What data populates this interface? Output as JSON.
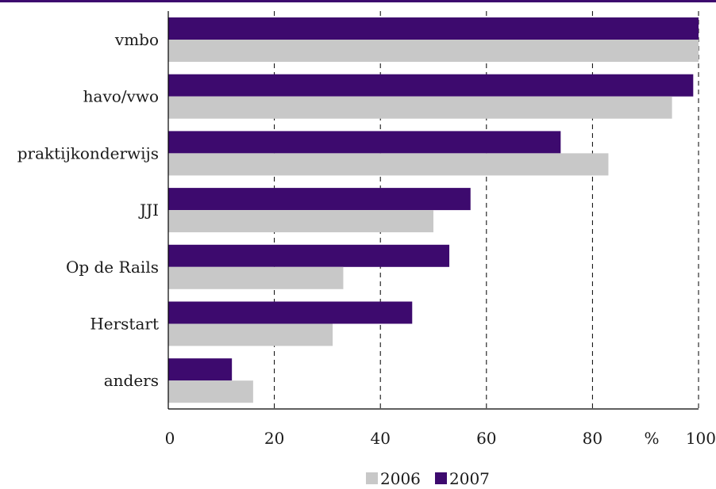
{
  "chart_data": {
    "type": "bar",
    "orientation": "horizontal",
    "categories": [
      "vmbo",
      "havo/vwo",
      "praktijkonderwijs",
      "JJI",
      "Op de Rails",
      "Herstart",
      "anders"
    ],
    "series": [
      {
        "name": "2007",
        "color": "#3d0a6e",
        "values": [
          100,
          99,
          74,
          57,
          53,
          46,
          12
        ]
      },
      {
        "name": "2006",
        "color": "#c8c8c8",
        "values": [
          100,
          95,
          83,
          50,
          33,
          31,
          16
        ]
      }
    ],
    "legend": [
      "2006",
      "2007"
    ],
    "legend_position": "bottom-center",
    "xlabel": "%",
    "xlim": [
      0,
      100
    ],
    "xticks": [
      0,
      20,
      40,
      60,
      80,
      100
    ],
    "xtick_labels": [
      "0",
      "20",
      "40",
      "60",
      "80",
      "100"
    ],
    "grid": "vertical-dashed"
  }
}
